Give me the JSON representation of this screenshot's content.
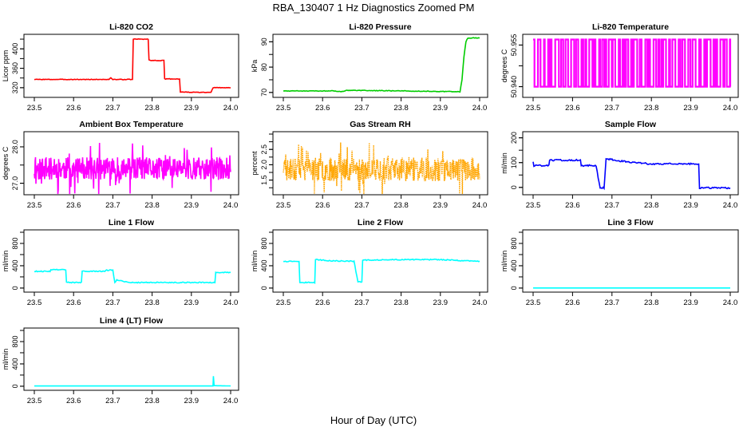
{
  "figure": {
    "title": "RBA_130407  1 Hz Diagnostics Zoomed PM",
    "xlabel": "Hour of Day (UTC)"
  },
  "chart_data": [
    {
      "type": "line",
      "title": "Li-820 CO2",
      "ylabel": "Licor ppm",
      "color": "#ff0000",
      "xlim": [
        23.5,
        24.0
      ],
      "ylim": [
        305,
        425
      ],
      "xticks": [
        "23.5",
        "23.6",
        "23.7",
        "23.8",
        "23.9",
        "24.0"
      ],
      "yticks": [
        {
          "v": 320,
          "t": "320"
        },
        {
          "v": 360,
          "t": "360"
        },
        {
          "v": 400,
          "t": "400"
        }
      ],
      "style": "step",
      "noise": 0.6,
      "points": [
        [
          23.5,
          337
        ],
        [
          23.69,
          337
        ],
        [
          23.695,
          340
        ],
        [
          23.7,
          337
        ],
        [
          23.75,
          337
        ],
        [
          23.752,
          420
        ],
        [
          23.79,
          420
        ],
        [
          23.792,
          377
        ],
        [
          23.8,
          376
        ],
        [
          23.83,
          376
        ],
        [
          23.832,
          338
        ],
        [
          23.87,
          338
        ],
        [
          23.872,
          311
        ],
        [
          23.95,
          310
        ],
        [
          23.955,
          320
        ],
        [
          23.96,
          320
        ],
        [
          23.962,
          320
        ],
        [
          24.0,
          320
        ]
      ]
    },
    {
      "type": "line",
      "title": "Li-820 Pressure",
      "ylabel": "kPa",
      "color": "#00cc00",
      "xlim": [
        23.5,
        24.0
      ],
      "ylim": [
        69,
        92
      ],
      "xticks": [
        "23.5",
        "23.6",
        "23.7",
        "23.8",
        "23.9",
        "24.0"
      ],
      "yticks": [
        {
          "v": 70,
          "t": "70"
        },
        {
          "v": 80,
          "t": "80"
        },
        {
          "v": 90,
          "t": "90"
        }
      ],
      "style": "step",
      "noise": 0.12,
      "points": [
        [
          23.5,
          70.6
        ],
        [
          23.63,
          70.6
        ],
        [
          23.64,
          70.4
        ],
        [
          23.65,
          70.4
        ],
        [
          23.66,
          70.8
        ],
        [
          23.75,
          70.7
        ],
        [
          23.85,
          70.5
        ],
        [
          23.95,
          70.3
        ],
        [
          23.955,
          75
        ],
        [
          23.96,
          84
        ],
        [
          23.965,
          90
        ],
        [
          23.97,
          91.5
        ],
        [
          24.0,
          91.5
        ]
      ]
    },
    {
      "type": "line",
      "title": "Li-820 Temperature",
      "ylabel": "degrees C",
      "color": "#ff00ff",
      "xlim": [
        23.5,
        24.0
      ],
      "ylim": [
        50.937,
        50.958
      ],
      "xticks": [
        "23.5",
        "23.6",
        "23.7",
        "23.8",
        "23.9",
        "24.0"
      ],
      "yticks": [
        {
          "v": 50.94,
          "t": "50.940"
        },
        {
          "v": 50.955,
          "t": "50.955"
        }
      ],
      "style": "binary",
      "levels": [
        50.94,
        50.957
      ],
      "transitions": 90,
      "seed": 7
    },
    {
      "type": "line",
      "title": "Ambient Box Temperature",
      "ylabel": "degrees C",
      "color": "#ff00ff",
      "xlim": [
        23.5,
        24.0
      ],
      "ylim": [
        26.75,
        28.35
      ],
      "xticks": [
        "23.5",
        "23.6",
        "23.7",
        "23.8",
        "23.9",
        "24.0"
      ],
      "yticks": [
        {
          "v": 27.0,
          "t": "27.0"
        },
        {
          "v": 28.0,
          "t": "28.0"
        }
      ],
      "style": "noise",
      "mean": 27.4,
      "amp": 0.45,
      "n": 500,
      "seed": 11,
      "points": [
        [
          23.5,
          27.4
        ],
        [
          24.0,
          27.4
        ]
      ]
    },
    {
      "type": "line",
      "title": "Gas Stream RH",
      "ylabel": "percent",
      "color": "#ffa500",
      "xlim": [
        23.5,
        24.0
      ],
      "ylim": [
        1.1,
        3.0
      ],
      "xticks": [
        "23.5",
        "23.6",
        "23.7",
        "23.8",
        "23.9",
        "24.0"
      ],
      "yticks": [
        {
          "v": 1.5,
          "t": "1.5"
        },
        {
          "v": 2.0,
          "t": "2.0"
        },
        {
          "v": 2.5,
          "t": "2.5"
        }
      ],
      "style": "noise",
      "mean": 1.85,
      "amp": 0.55,
      "n": 500,
      "seed": 23,
      "dotted": true,
      "points": [
        [
          23.5,
          1.85
        ],
        [
          24.0,
          1.85
        ]
      ]
    },
    {
      "type": "line",
      "title": "Sample Flow",
      "ylabel": "ml/min",
      "color": "#0000ff",
      "xlim": [
        23.5,
        24.0
      ],
      "ylim": [
        -20,
        215
      ],
      "xticks": [
        "23.5",
        "23.6",
        "23.7",
        "23.8",
        "23.9",
        "24.0"
      ],
      "yticks": [
        {
          "v": 0,
          "t": "0"
        },
        {
          "v": 100,
          "t": "100"
        },
        {
          "v": 200,
          "t": "200"
        }
      ],
      "style": "step",
      "noise": 3,
      "points": [
        [
          23.5,
          105
        ],
        [
          23.502,
          88
        ],
        [
          23.54,
          88
        ],
        [
          23.542,
          110
        ],
        [
          23.62,
          110
        ],
        [
          23.622,
          88
        ],
        [
          23.66,
          88
        ],
        [
          23.665,
          40
        ],
        [
          23.67,
          -2
        ],
        [
          23.68,
          -2
        ],
        [
          23.685,
          115
        ],
        [
          23.7,
          112
        ],
        [
          23.75,
          100
        ],
        [
          23.8,
          95
        ],
        [
          23.9,
          95
        ],
        [
          23.92,
          95
        ],
        [
          23.922,
          -2
        ],
        [
          24.0,
          -2
        ]
      ]
    },
    {
      "type": "line",
      "title": "Line 1 Flow",
      "ylabel": "ml/min",
      "color": "#00ffff",
      "xlim": [
        23.5,
        24.0
      ],
      "ylim": [
        -30,
        1000
      ],
      "xticks": [
        "23.5",
        "23.6",
        "23.7",
        "23.8",
        "23.9",
        "24.0"
      ],
      "yticks": [
        {
          "v": 0,
          "t": "0"
        },
        {
          "v": 400,
          "t": "400"
        },
        {
          "v": 800,
          "t": "800"
        }
      ],
      "style": "step",
      "noise": 8,
      "points": [
        [
          23.5,
          300
        ],
        [
          23.54,
          300
        ],
        [
          23.542,
          330
        ],
        [
          23.58,
          330
        ],
        [
          23.582,
          100
        ],
        [
          23.62,
          100
        ],
        [
          23.622,
          300
        ],
        [
          23.68,
          300
        ],
        [
          23.682,
          320
        ],
        [
          23.7,
          320
        ],
        [
          23.705,
          100
        ],
        [
          23.71,
          150
        ],
        [
          23.74,
          100
        ],
        [
          23.96,
          100
        ],
        [
          23.962,
          280
        ],
        [
          24.0,
          280
        ]
      ]
    },
    {
      "type": "line",
      "title": "Line 2 Flow",
      "ylabel": "ml/min",
      "color": "#00ffff",
      "xlim": [
        23.5,
        24.0
      ],
      "ylim": [
        -30,
        1000
      ],
      "xticks": [
        "23.5",
        "23.6",
        "23.7",
        "23.8",
        "23.9",
        "24.0"
      ],
      "yticks": [
        {
          "v": 0,
          "t": "0"
        },
        {
          "v": 400,
          "t": "400"
        },
        {
          "v": 800,
          "t": "800"
        }
      ],
      "style": "step",
      "noise": 8,
      "points": [
        [
          23.5,
          480
        ],
        [
          23.54,
          480
        ],
        [
          23.542,
          100
        ],
        [
          23.58,
          100
        ],
        [
          23.582,
          510
        ],
        [
          23.62,
          490
        ],
        [
          23.68,
          480
        ],
        [
          23.69,
          110
        ],
        [
          23.7,
          110
        ],
        [
          23.702,
          500
        ],
        [
          23.8,
          510
        ],
        [
          23.9,
          510
        ],
        [
          23.96,
          490
        ],
        [
          24.0,
          480
        ]
      ]
    },
    {
      "type": "line",
      "title": "Line 3 Flow",
      "ylabel": "ml/min",
      "color": "#00ffff",
      "xlim": [
        23.5,
        24.0
      ],
      "ylim": [
        -30,
        1000
      ],
      "xticks": [
        "23.5",
        "23.6",
        "23.7",
        "23.8",
        "23.9",
        "24.0"
      ],
      "yticks": [
        {
          "v": 0,
          "t": "0"
        },
        {
          "v": 400,
          "t": "400"
        },
        {
          "v": 800,
          "t": "800"
        }
      ],
      "style": "step",
      "noise": 0,
      "points": [
        [
          23.5,
          2
        ],
        [
          24.0,
          2
        ]
      ]
    },
    {
      "type": "line",
      "title": "Line 4 (LT) Flow",
      "ylabel": "ml/min",
      "color": "#00ffff",
      "xlim": [
        23.5,
        24.0
      ],
      "ylim": [
        -30,
        1000
      ],
      "xticks": [
        "23.5",
        "23.6",
        "23.7",
        "23.8",
        "23.9",
        "24.0"
      ],
      "yticks": [
        {
          "v": 0,
          "t": "0"
        },
        {
          "v": 400,
          "t": "400"
        },
        {
          "v": 800,
          "t": "800"
        }
      ],
      "style": "step",
      "noise": 0,
      "points": [
        [
          23.5,
          5
        ],
        [
          23.955,
          5
        ],
        [
          23.956,
          180
        ],
        [
          23.958,
          10
        ],
        [
          24.0,
          5
        ]
      ]
    }
  ]
}
